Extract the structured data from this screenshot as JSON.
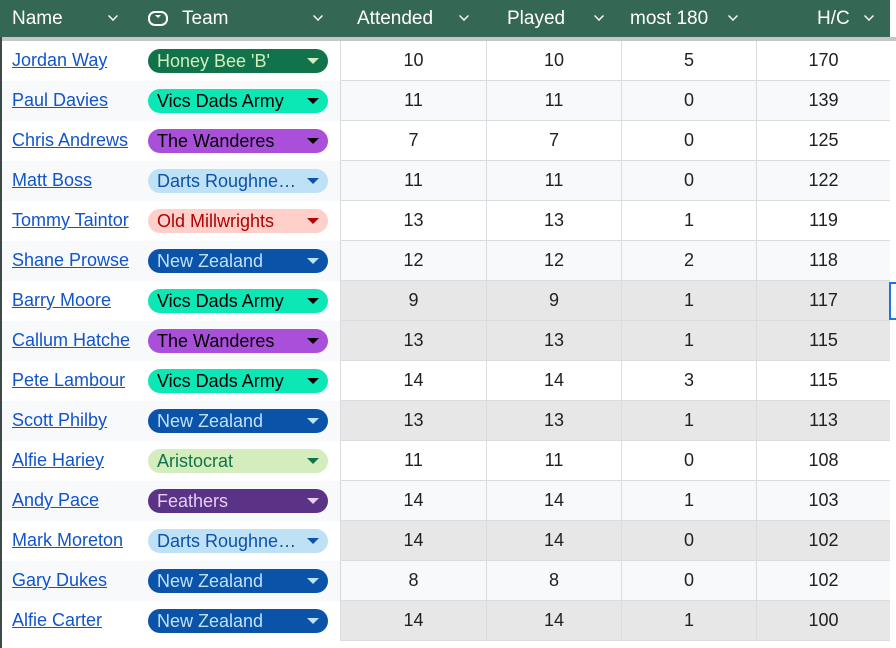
{
  "header": {
    "columns": [
      {
        "label": "Name"
      },
      {
        "label": "Team",
        "icon": "dropdown-chip-icon"
      },
      {
        "label": "Attended"
      },
      {
        "label": "Played"
      },
      {
        "label": "most 180"
      },
      {
        "label": "H/C"
      }
    ],
    "color": "#356854"
  },
  "teams": {
    "Honey Bee 'B'": {
      "bg": "#11734b",
      "fg": "#d4edbc"
    },
    "Vics Dads Army": {
      "bg": "#0be8b6",
      "fg": "#000000"
    },
    "The Wanderes": {
      "bg": "#a94fd9",
      "fg": "#000000"
    },
    "Darts Roughne…": {
      "bg": "#bfe1f6",
      "fg": "#0a53a8"
    },
    "Old Millwrights": {
      "bg": "#ffcfc9",
      "fg": "#b10202"
    },
    "New Zealand": {
      "bg": "#0a53a8",
      "fg": "#bfe1f6"
    },
    "Aristocrat": {
      "bg": "#d4edbc",
      "fg": "#11734b"
    },
    "Feathers": {
      "bg": "#5a3286",
      "fg": "#e5cff2"
    }
  },
  "rows": [
    {
      "name": "Jordan Way",
      "team": "Honey Bee 'B'",
      "attended": "10",
      "played": "10",
      "most180": "5",
      "hc": "170",
      "highlight": false
    },
    {
      "name": "Paul Davies",
      "team": "Vics Dads Army",
      "attended": "11",
      "played": "11",
      "most180": "0",
      "hc": "139",
      "highlight": false
    },
    {
      "name": "Chris Andrews",
      "team": "The Wanderes",
      "attended": "7",
      "played": "7",
      "most180": "0",
      "hc": "125",
      "highlight": false
    },
    {
      "name": "Matt Boss",
      "team": "Darts Roughne…",
      "attended": "11",
      "played": "11",
      "most180": "0",
      "hc": "122",
      "highlight": false
    },
    {
      "name": "Tommy Taintor",
      "team": "Old Millwrights",
      "attended": "13",
      "played": "13",
      "most180": "1",
      "hc": "119",
      "highlight": false
    },
    {
      "name": "Shane Prowse",
      "team": "New Zealand",
      "attended": "12",
      "played": "12",
      "most180": "2",
      "hc": "118",
      "highlight": false
    },
    {
      "name": "Barry Moore",
      "team": "Vics Dads Army",
      "attended": "9",
      "played": "9",
      "most180": "1",
      "hc": "117",
      "highlight": true
    },
    {
      "name": "Callum Hatche",
      "team": "The Wanderes",
      "attended": "13",
      "played": "13",
      "most180": "1",
      "hc": "115",
      "highlight": true
    },
    {
      "name": "Pete Lambour",
      "team": "Vics Dads Army",
      "attended": "14",
      "played": "14",
      "most180": "3",
      "hc": "115",
      "highlight": false
    },
    {
      "name": "Scott Philby",
      "team": "New Zealand",
      "attended": "13",
      "played": "13",
      "most180": "1",
      "hc": "113",
      "highlight": true
    },
    {
      "name": "Alfie Hariey",
      "team": "Aristocrat",
      "attended": "11",
      "played": "11",
      "most180": "0",
      "hc": "108",
      "highlight": false
    },
    {
      "name": "Andy Pace",
      "team": "Feathers",
      "attended": "14",
      "played": "14",
      "most180": "1",
      "hc": "103",
      "highlight": false
    },
    {
      "name": "Mark Moreton",
      "team": "Darts Roughne…",
      "attended": "14",
      "played": "14",
      "most180": "0",
      "hc": "102",
      "highlight": true
    },
    {
      "name": "Gary Dukes",
      "team": "New Zealand",
      "attended": "8",
      "played": "8",
      "most180": "0",
      "hc": "102",
      "highlight": false
    },
    {
      "name": "Alfie Carter",
      "team": "New Zealand",
      "attended": "14",
      "played": "14",
      "most180": "1",
      "hc": "100",
      "highlight": true
    }
  ]
}
